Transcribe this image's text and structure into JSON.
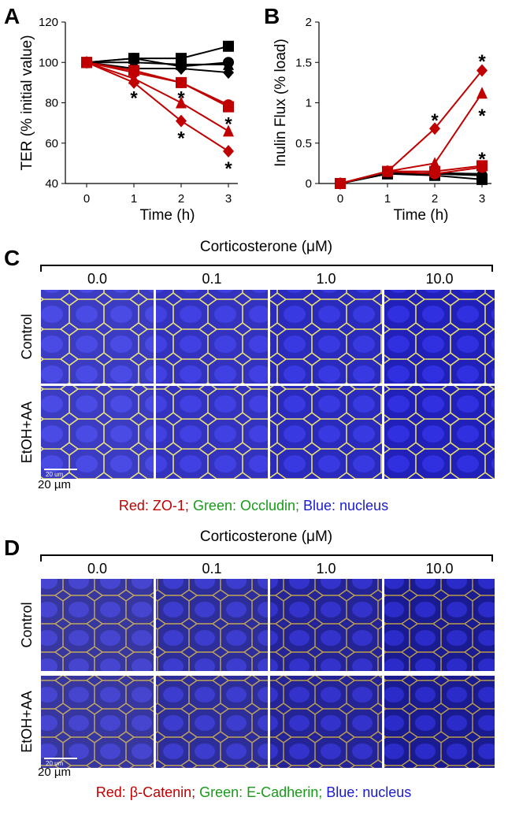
{
  "chart_data": [
    {
      "panel": "A",
      "type": "line",
      "x": [
        0,
        1,
        2,
        3
      ],
      "xlim": [
        -0.45,
        3.2
      ],
      "xticks": [
        0,
        1,
        2,
        3
      ],
      "ylim": [
        40,
        120
      ],
      "yticks": [
        40,
        60,
        80,
        100,
        120
      ],
      "xlabel": "Time (h)",
      "ylabel": "TER (% initial value)",
      "series": [
        {
          "color": "#000000",
          "marker": "square",
          "values": [
            100,
            102,
            102,
            108
          ]
        },
        {
          "color": "#000000",
          "marker": "circle",
          "values": [
            100,
            102,
            98,
            100
          ]
        },
        {
          "color": "#000000",
          "marker": "triangle",
          "values": [
            100,
            100,
            99,
            99
          ]
        },
        {
          "color": "#000000",
          "marker": "diamond",
          "values": [
            100,
            97,
            97,
            95
          ]
        },
        {
          "color": "#c00000",
          "marker": "circle",
          "values": [
            100,
            95,
            90,
            79
          ]
        },
        {
          "color": "#c00000",
          "marker": "square",
          "values": [
            100,
            96,
            90,
            78
          ]
        },
        {
          "color": "#c00000",
          "marker": "triangle",
          "values": [
            100,
            92,
            80,
            66
          ]
        },
        {
          "color": "#c00000",
          "marker": "diamond",
          "values": [
            100,
            90,
            71,
            56
          ]
        }
      ],
      "annotations": [
        {
          "text": "*",
          "x": 1,
          "y": 84
        },
        {
          "text": "*",
          "x": 2,
          "y": 84
        },
        {
          "text": "*",
          "x": 2,
          "y": 64
        },
        {
          "text": "*",
          "x": 3,
          "y": 71
        },
        {
          "text": "*",
          "x": 3,
          "y": 49
        }
      ]
    },
    {
      "panel": "B",
      "type": "line",
      "x": [
        0,
        1,
        2,
        3
      ],
      "xlim": [
        -0.45,
        3.2
      ],
      "xticks": [
        0,
        1,
        2,
        3
      ],
      "ylim": [
        0,
        2
      ],
      "yticks": [
        0,
        0.5,
        1,
        1.5,
        2
      ],
      "xlabel": "Time (h)",
      "ylabel": "Inulin Flux (% load)",
      "series": [
        {
          "color": "#000000",
          "marker": "square",
          "values": [
            0,
            0.12,
            0.1,
            0.05
          ]
        },
        {
          "color": "#000000",
          "marker": "circle",
          "values": [
            0,
            0.13,
            0.12,
            0.1
          ]
        },
        {
          "color": "#000000",
          "marker": "triangle",
          "values": [
            0,
            0.12,
            0.13,
            0.12
          ]
        },
        {
          "color": "#c00000",
          "marker": "circle",
          "values": [
            0,
            0.15,
            0.12,
            0.2
          ]
        },
        {
          "color": "#c00000",
          "marker": "square",
          "values": [
            0,
            0.15,
            0.15,
            0.22
          ]
        },
        {
          "color": "#c00000",
          "marker": "triangle",
          "values": [
            0,
            0.15,
            0.25,
            1.12
          ]
        },
        {
          "color": "#c00000",
          "marker": "diamond",
          "values": [
            0,
            0.15,
            0.68,
            1.4
          ]
        }
      ],
      "annotations": [
        {
          "text": "*",
          "x": 2,
          "y": 0.82
        },
        {
          "text": "*",
          "x": 3,
          "y": 1.55
        },
        {
          "text": "*",
          "x": 3,
          "y": 0.88
        },
        {
          "text": "*",
          "x": 3,
          "y": 0.34
        }
      ]
    }
  ],
  "panels": [
    {
      "label": "C",
      "title": "Corticosterone (μM)",
      "columns": [
        "0.0",
        "0.1",
        "1.0",
        "10.0"
      ],
      "rows": [
        "Control",
        "EtOH+AA"
      ],
      "scale_bar": "20 um",
      "scale": "20 µm",
      "caption": [
        {
          "text": "Red: ZO-1;",
          "color": "#c00000"
        },
        {
          "text": "Green: Occludin;",
          "color": "#1a9a1a"
        },
        {
          "text": "Blue: nucleus",
          "color": "#1a1ad0"
        }
      ]
    },
    {
      "label": "D",
      "title": "Corticosterone (μM)",
      "columns": [
        "0.0",
        "0.1",
        "1.0",
        "10.0"
      ],
      "rows": [
        "Control",
        "EtOH+AA"
      ],
      "scale_bar": "20 um",
      "scale": "20 µm",
      "caption": [
        {
          "text": "Red: β-Catenin;",
          "color": "#c00000"
        },
        {
          "text": "Green: E-Cadherin;",
          "color": "#1a9a1a"
        },
        {
          "text": "Blue: nucleus",
          "color": "#1a1ad0"
        }
      ]
    }
  ]
}
